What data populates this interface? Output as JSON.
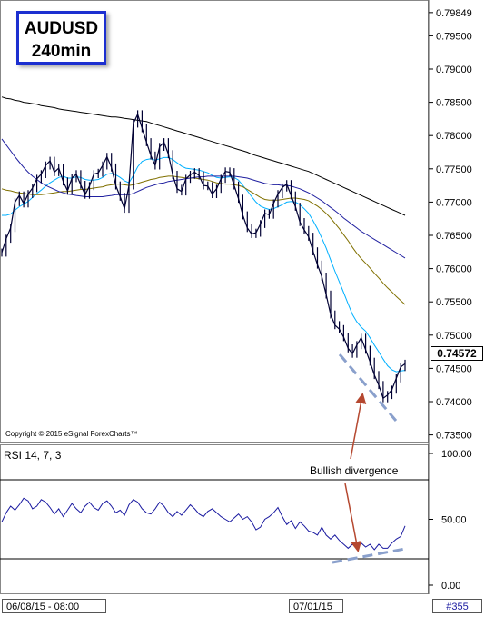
{
  "title": {
    "line1": "AUDUSD",
    "line2": "240min"
  },
  "copyright": "Copyright © 2015 eSignal ForexCharts™",
  "rsi_title": "RSI 14, 7, 3",
  "annotation": "Bullish divergence",
  "date_labels": [
    "06/08/15 - 08:00",
    "07/01/15"
  ],
  "bar_count": "#355",
  "last_price": "0.74572",
  "price_ticks": [
    "0.79849",
    "0.79500",
    "0.79000",
    "0.78500",
    "0.78000",
    "0.77500",
    "0.77000",
    "0.76500",
    "0.76000",
    "0.75500",
    "0.75000",
    "0.74500",
    "0.74000",
    "0.73500"
  ],
  "rsi_ticks": [
    "100.00",
    "50.00",
    "0.00"
  ],
  "colors": {
    "price": "#000033",
    "ema_fast": "#00b0ff",
    "ema_mid": "#807000",
    "ema_slow": "#2020a0",
    "ema_long": "#000000",
    "rsi": "#1a1aa0",
    "divergence": "#8aa0cc",
    "arrow": "#b54830",
    "title_border": "#1c2fd0"
  },
  "chart_data": [
    {
      "type": "line",
      "panel": "price",
      "ylim": [
        0.7335,
        0.7985
      ],
      "x_ticks": [
        "06/08/15 - 08:00",
        "07/01/15"
      ],
      "series": [
        {
          "values": [
            0.7624,
            0.7645,
            0.7661,
            0.77,
            0.771,
            0.7698,
            0.7712,
            0.7721,
            0.7735,
            0.7742,
            0.7755,
            0.7762,
            0.7745,
            0.7751,
            0.7731,
            0.7717,
            0.7736,
            0.7742,
            0.7726,
            0.7711,
            0.7724,
            0.7742,
            0.7744,
            0.7755,
            0.7768,
            0.7752,
            0.7725,
            0.7708,
            0.769,
            0.7725,
            0.7818,
            0.7832,
            0.7811,
            0.779,
            0.777,
            0.7755,
            0.7783,
            0.779,
            0.7772,
            0.7741,
            0.772,
            0.7716,
            0.7735,
            0.7741,
            0.7745,
            0.774,
            0.7725,
            0.7724,
            0.7712,
            0.772,
            0.7735,
            0.7746,
            0.7745,
            0.7725,
            0.7705,
            0.768,
            0.7661,
            0.7652,
            0.7654,
            0.7667,
            0.7683,
            0.7681,
            0.7698,
            0.7712,
            0.7722,
            0.7727,
            0.771,
            0.7693,
            0.767,
            0.7658,
            0.7648,
            0.7626,
            0.7606,
            0.7588,
            0.7561,
            0.7531,
            0.7515,
            0.7509,
            0.7497,
            0.748,
            0.7472,
            0.7485,
            0.7496,
            0.7478,
            0.746,
            0.744,
            0.7425,
            0.7405,
            0.741,
            0.7418,
            0.7435,
            0.7452,
            0.7457
          ]
        },
        {
          "values": [
            0.768,
            0.768,
            0.7682,
            0.7688,
            0.7693,
            0.7697,
            0.7701,
            0.7707,
            0.7713,
            0.7718,
            0.7724,
            0.7729,
            0.7733,
            0.7737,
            0.7739,
            0.7736,
            0.7736,
            0.7738,
            0.7737,
            0.7734,
            0.7733,
            0.7733,
            0.7734,
            0.7737,
            0.7742,
            0.7743,
            0.7741,
            0.7737,
            0.7732,
            0.7729,
            0.774,
            0.7753,
            0.7761,
            0.7764,
            0.7765,
            0.7763,
            0.7765,
            0.7767,
            0.7767,
            0.7764,
            0.7759,
            0.7754,
            0.7751,
            0.775,
            0.7749,
            0.7748,
            0.7746,
            0.7744,
            0.774,
            0.7737,
            0.7736,
            0.7737,
            0.7738,
            0.7737,
            0.7733,
            0.7725,
            0.7717,
            0.7708,
            0.77,
            0.7694,
            0.7691,
            0.7689,
            0.769,
            0.7693,
            0.7696,
            0.77,
            0.7701,
            0.77,
            0.7696,
            0.769,
            0.7683,
            0.7672,
            0.766,
            0.7646,
            0.7631,
            0.7613,
            0.7596,
            0.758,
            0.7564,
            0.7547,
            0.7531,
            0.752,
            0.7512,
            0.7506,
            0.7496,
            0.7485,
            0.7475,
            0.7464,
            0.7454,
            0.7448,
            0.7445,
            0.7446,
            0.7447
          ]
        },
        {
          "values": [
            0.772,
            0.7718,
            0.7717,
            0.7715,
            0.7714,
            0.7713,
            0.7712,
            0.7711,
            0.7711,
            0.7711,
            0.7712,
            0.7713,
            0.7714,
            0.7715,
            0.7716,
            0.7716,
            0.7717,
            0.7718,
            0.7719,
            0.7719,
            0.772,
            0.7721,
            0.7722,
            0.7723,
            0.7725,
            0.7726,
            0.7727,
            0.7727,
            0.7726,
            0.7725,
            0.7726,
            0.7728,
            0.773,
            0.7732,
            0.7734,
            0.7735,
            0.7737,
            0.7738,
            0.7739,
            0.7739,
            0.7738,
            0.7737,
            0.7736,
            0.7736,
            0.7736,
            0.7735,
            0.7734,
            0.7733,
            0.7731,
            0.7729,
            0.7728,
            0.7727,
            0.7727,
            0.7726,
            0.7725,
            0.7723,
            0.7719,
            0.7715,
            0.7711,
            0.7707,
            0.7704,
            0.7703,
            0.7703,
            0.7703,
            0.7704,
            0.7705,
            0.7706,
            0.7706,
            0.7705,
            0.7704,
            0.7702,
            0.7698,
            0.7694,
            0.7689,
            0.7683,
            0.7676,
            0.7668,
            0.766,
            0.7651,
            0.7642,
            0.7632,
            0.7623,
            0.7615,
            0.7608,
            0.7601,
            0.7593,
            0.7586,
            0.7578,
            0.7571,
            0.7565,
            0.7558,
            0.7552,
            0.7546
          ]
        },
        {
          "values": [
            0.7795,
            0.7786,
            0.7777,
            0.7768,
            0.776,
            0.7752,
            0.7745,
            0.7739,
            0.7734,
            0.7729,
            0.7725,
            0.7722,
            0.7719,
            0.7716,
            0.7714,
            0.7712,
            0.7711,
            0.771,
            0.7709,
            0.7708,
            0.7708,
            0.7708,
            0.7708,
            0.7708,
            0.7709,
            0.771,
            0.7711,
            0.7711,
            0.7711,
            0.7711,
            0.7713,
            0.7716,
            0.7719,
            0.7722,
            0.7724,
            0.7726,
            0.7728,
            0.7729,
            0.7731,
            0.7732,
            0.7733,
            0.7734,
            0.7735,
            0.7736,
            0.7737,
            0.7738,
            0.7738,
            0.7739,
            0.7739,
            0.7739,
            0.7739,
            0.7739,
            0.7739,
            0.7739,
            0.7738,
            0.7737,
            0.7736,
            0.7734,
            0.7732,
            0.773,
            0.7728,
            0.7727,
            0.7726,
            0.7726,
            0.7725,
            0.7725,
            0.7724,
            0.7722,
            0.772,
            0.7717,
            0.7714,
            0.771,
            0.7706,
            0.7702,
            0.7697,
            0.7692,
            0.7687,
            0.7682,
            0.7676,
            0.7671,
            0.7666,
            0.7661,
            0.7656,
            0.7652,
            0.7648,
            0.7644,
            0.764,
            0.7636,
            0.7632,
            0.7628,
            0.7624,
            0.762,
            0.7616
          ]
        },
        {
          "values": [
            0.7858,
            0.7856,
            0.7855,
            0.7853,
            0.7852,
            0.785,
            0.7849,
            0.7848,
            0.7847,
            0.7845,
            0.7844,
            0.7843,
            0.7842,
            0.784,
            0.7839,
            0.7838,
            0.7837,
            0.7836,
            0.7835,
            0.7834,
            0.7833,
            0.7832,
            0.7831,
            0.783,
            0.7829,
            0.7828,
            0.7828,
            0.7827,
            0.7826,
            0.7825,
            0.7824,
            0.7823,
            0.7822,
            0.7821,
            0.7819,
            0.7817,
            0.7815,
            0.7813,
            0.7811,
            0.7809,
            0.7807,
            0.7805,
            0.7803,
            0.7801,
            0.7799,
            0.7797,
            0.7795,
            0.7793,
            0.7791,
            0.7789,
            0.7787,
            0.7785,
            0.7783,
            0.7781,
            0.7779,
            0.7777,
            0.7775,
            0.7772,
            0.777,
            0.7768,
            0.7766,
            0.7764,
            0.7762,
            0.776,
            0.7758,
            0.7756,
            0.7754,
            0.7752,
            0.775,
            0.7748,
            0.7746,
            0.7743,
            0.774,
            0.7737,
            0.7734,
            0.7731,
            0.7728,
            0.7725,
            0.7722,
            0.7719,
            0.7716,
            0.7713,
            0.771,
            0.7707,
            0.7704,
            0.7701,
            0.7698,
            0.7695,
            0.7692,
            0.7689,
            0.7686,
            0.7683,
            0.768
          ]
        }
      ]
    },
    {
      "type": "line",
      "panel": "rsi",
      "ylim": [
        0,
        100
      ],
      "series": [
        {
          "values": [
            48,
            55,
            60,
            57,
            61,
            66,
            64,
            58,
            60,
            65,
            63,
            59,
            54,
            58,
            52,
            57,
            62,
            58,
            55,
            60,
            63,
            59,
            57,
            62,
            64,
            60,
            55,
            57,
            53,
            61,
            65,
            63,
            58,
            55,
            54,
            58,
            63,
            60,
            55,
            52,
            56,
            53,
            57,
            61,
            58,
            54,
            52,
            56,
            58,
            55,
            52,
            50,
            48,
            51,
            54,
            50,
            52,
            48,
            42,
            44,
            50,
            52,
            55,
            59,
            52,
            46,
            49,
            43,
            48,
            45,
            41,
            40,
            38,
            44,
            38,
            35,
            38,
            34,
            31,
            28,
            31,
            29,
            32,
            29,
            31,
            27,
            31,
            28,
            28,
            32,
            35,
            37,
            45
          ]
        }
      ]
    }
  ]
}
